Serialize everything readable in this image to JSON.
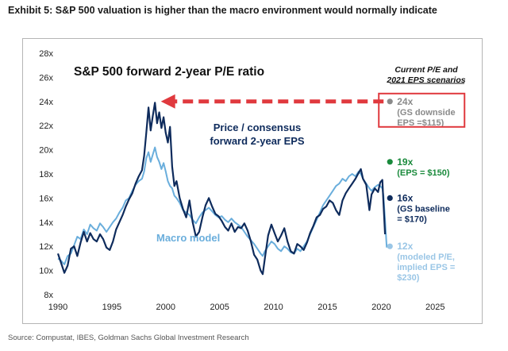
{
  "header": {
    "title": "Exhibit 5: S&P 500 valuation is higher than the macro environment would normally indicate"
  },
  "footer": {
    "source": "Source: Compustat, IBES, Goldman Sachs Global Investment Research"
  },
  "colors": {
    "pe_line": "#0e2b5c",
    "macro_line": "#6aaedc",
    "arrow": "#e0393e",
    "box": "#e0393e",
    "gray_point": "#8a8a8a",
    "green_point": "#1a8a3c",
    "baseline_point": "#0e2b5c",
    "modeled_point": "#9ac6e6"
  },
  "chart_data": {
    "type": "line",
    "title": "S&P 500 forward 2-year P/E ratio",
    "xlabel": "",
    "ylabel": "",
    "xlim": [
      1990,
      2028
    ],
    "ylim": [
      8,
      28
    ],
    "x_ticks": [
      1990,
      1995,
      2000,
      2005,
      2010,
      2015,
      2020,
      2025
    ],
    "y_ticks": [
      8,
      10,
      12,
      14,
      16,
      18,
      20,
      22,
      24,
      26,
      28
    ],
    "y_tick_suffix": "x",
    "series": [
      {
        "name": "Price / consensus forward 2-year EPS",
        "label_lines": [
          "Price / consensus",
          "forward 2-year EPS"
        ],
        "color": "#0e2b5c",
        "x": [
          1990.0,
          1990.3,
          1990.6,
          1990.9,
          1991.2,
          1991.5,
          1991.8,
          1992.1,
          1992.4,
          1992.7,
          1993.0,
          1993.3,
          1993.6,
          1993.9,
          1994.2,
          1994.5,
          1994.8,
          1995.1,
          1995.4,
          1995.7,
          1996.0,
          1996.3,
          1996.6,
          1996.9,
          1997.2,
          1997.5,
          1997.8,
          1998.0,
          1998.2,
          1998.4,
          1998.6,
          1998.8,
          1999.0,
          1999.2,
          1999.4,
          1999.6,
          1999.8,
          2000.0,
          2000.2,
          2000.4,
          2000.6,
          2000.8,
          2001.0,
          2001.3,
          2001.6,
          2001.9,
          2002.2,
          2002.5,
          2002.8,
          2003.1,
          2003.4,
          2003.7,
          2004.0,
          2004.3,
          2004.6,
          2004.9,
          2005.2,
          2005.5,
          2005.8,
          2006.1,
          2006.4,
          2006.7,
          2007.0,
          2007.3,
          2007.6,
          2007.9,
          2008.2,
          2008.5,
          2008.8,
          2009.0,
          2009.2,
          2009.5,
          2009.8,
          2010.1,
          2010.4,
          2010.7,
          2011.0,
          2011.3,
          2011.6,
          2011.9,
          2012.2,
          2012.5,
          2012.8,
          2013.1,
          2013.4,
          2013.7,
          2014.0,
          2014.3,
          2014.6,
          2014.9,
          2015.2,
          2015.5,
          2015.8,
          2016.1,
          2016.4,
          2016.7,
          2017.0,
          2017.3,
          2017.6,
          2017.9,
          2018.1,
          2018.3,
          2018.6,
          2018.9,
          2019.1,
          2019.4,
          2019.7,
          2019.9,
          2020.1,
          2020.2,
          2020.35
        ],
        "values": [
          11.4,
          10.6,
          9.8,
          10.4,
          11.8,
          12.0,
          11.2,
          12.3,
          13.2,
          12.4,
          13.1,
          12.6,
          12.4,
          13.0,
          12.6,
          11.9,
          11.7,
          12.4,
          13.4,
          14.0,
          14.6,
          15.3,
          15.9,
          16.4,
          17.2,
          17.8,
          18.3,
          19.5,
          21.4,
          23.5,
          21.6,
          22.8,
          23.9,
          22.2,
          23.1,
          21.8,
          22.7,
          21.4,
          20.6,
          21.9,
          18.6,
          17.0,
          17.4,
          16.0,
          15.1,
          14.4,
          15.8,
          14.0,
          12.8,
          13.2,
          14.4,
          15.4,
          16.0,
          15.3,
          14.7,
          14.5,
          14.1,
          13.6,
          13.3,
          13.9,
          13.2,
          13.6,
          13.5,
          13.9,
          13.3,
          12.4,
          11.3,
          10.9,
          10.0,
          9.7,
          11.0,
          12.9,
          13.8,
          13.1,
          12.4,
          12.9,
          13.5,
          12.4,
          11.6,
          11.4,
          12.2,
          12.0,
          11.7,
          12.3,
          13.1,
          13.7,
          14.4,
          14.6,
          15.1,
          15.3,
          15.8,
          15.6,
          15.0,
          14.6,
          15.8,
          16.4,
          16.8,
          17.2,
          17.6,
          18.1,
          18.4,
          17.6,
          17.1,
          15.0,
          16.3,
          16.8,
          16.5,
          17.3,
          17.5,
          15.6,
          13.0
        ]
      },
      {
        "name": "Macro model",
        "color": "#6aaedc",
        "x": [
          1990.0,
          1990.3,
          1990.6,
          1990.9,
          1991.2,
          1991.5,
          1991.8,
          1992.1,
          1992.4,
          1992.7,
          1993.0,
          1993.3,
          1993.6,
          1993.9,
          1994.2,
          1994.5,
          1994.8,
          1995.1,
          1995.4,
          1995.7,
          1996.0,
          1996.3,
          1996.6,
          1996.9,
          1997.2,
          1997.5,
          1997.8,
          1998.0,
          1998.2,
          1998.4,
          1998.6,
          1998.8,
          1999.0,
          1999.2,
          1999.4,
          1999.6,
          1999.8,
          2000.0,
          2000.2,
          2000.4,
          2000.6,
          2000.8,
          2001.0,
          2001.3,
          2001.6,
          2001.9,
          2002.2,
          2002.5,
          2002.8,
          2003.1,
          2003.4,
          2003.7,
          2004.0,
          2004.3,
          2004.6,
          2004.9,
          2005.2,
          2005.5,
          2005.8,
          2006.1,
          2006.4,
          2006.7,
          2007.0,
          2007.3,
          2007.6,
          2007.9,
          2008.2,
          2008.5,
          2008.8,
          2009.0,
          2009.2,
          2009.5,
          2009.8,
          2010.1,
          2010.4,
          2010.7,
          2011.0,
          2011.3,
          2011.6,
          2011.9,
          2012.2,
          2012.5,
          2012.8,
          2013.1,
          2013.4,
          2013.7,
          2014.0,
          2014.3,
          2014.6,
          2014.9,
          2015.2,
          2015.5,
          2015.8,
          2016.1,
          2016.4,
          2016.7,
          2017.0,
          2017.3,
          2017.6,
          2017.9,
          2018.1,
          2018.3,
          2018.6,
          2018.9,
          2019.1,
          2019.4,
          2019.7,
          2019.9,
          2020.1,
          2020.2,
          2020.35,
          2020.5
        ],
        "values": [
          11.0,
          10.8,
          10.5,
          11.2,
          11.4,
          12.1,
          12.8,
          12.6,
          13.4,
          13.0,
          13.8,
          13.5,
          13.3,
          13.9,
          13.6,
          13.2,
          13.6,
          14.0,
          14.3,
          14.8,
          15.2,
          15.8,
          16.0,
          16.6,
          17.1,
          17.4,
          17.6,
          18.2,
          19.3,
          19.8,
          19.0,
          19.6,
          20.2,
          19.4,
          19.0,
          18.4,
          18.9,
          18.2,
          17.4,
          17.0,
          16.8,
          16.2,
          16.0,
          15.6,
          15.0,
          14.8,
          14.6,
          14.2,
          13.9,
          14.4,
          14.8,
          15.0,
          15.2,
          14.9,
          14.6,
          14.4,
          14.5,
          14.2,
          14.0,
          14.3,
          14.0,
          13.8,
          13.6,
          13.2,
          12.8,
          12.5,
          12.2,
          11.8,
          11.4,
          11.2,
          11.6,
          12.0,
          12.4,
          12.2,
          11.8,
          11.6,
          12.0,
          11.8,
          11.5,
          11.4,
          11.8,
          11.6,
          12.0,
          12.4,
          13.0,
          13.6,
          14.2,
          14.8,
          15.4,
          15.8,
          16.2,
          16.6,
          17.0,
          17.2,
          17.6,
          17.4,
          17.8,
          18.0,
          17.8,
          18.2,
          18.0,
          17.6,
          17.2,
          16.8,
          16.6,
          16.9,
          17.1,
          17.0,
          16.8,
          16.2,
          14.2,
          11.9
        ]
      }
    ],
    "macro_label": "Macro model",
    "annotations": {
      "header_lines": [
        "Current P/E and",
        "2021 EPS scenarios"
      ],
      "arrow_level": 24,
      "scenarios": [
        {
          "x": 2020.8,
          "y": 24,
          "color": "#8a8a8a",
          "lines": [
            "24x",
            "(GS downside",
            "EPS =$115)"
          ],
          "boxed": true
        },
        {
          "x": 2020.8,
          "y": 19,
          "color": "#1a8a3c",
          "lines": [
            "19x",
            "(EPS = $150)"
          ],
          "boxed": false
        },
        {
          "x": 2020.8,
          "y": 16,
          "color": "#0e2b5c",
          "lines": [
            "16x",
            "(GS baseline",
            "= $170)"
          ],
          "boxed": false
        },
        {
          "x": 2020.8,
          "y": 12,
          "color": "#9ac6e6",
          "lines": [
            "12x",
            "(modeled P/E,",
            "implied EPS =",
            "$230)"
          ],
          "boxed": false
        }
      ]
    }
  }
}
